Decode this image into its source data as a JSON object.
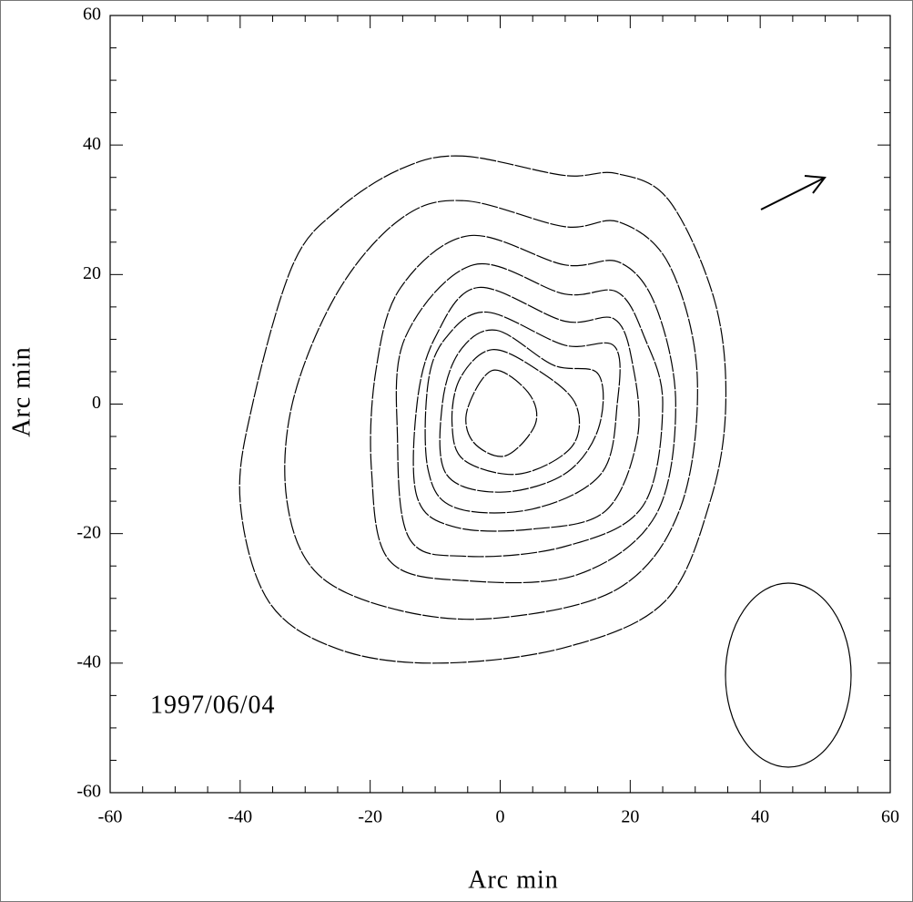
{
  "chart_data": {
    "type": "contour",
    "xlabel": "Arc min",
    "ylabel": "Arc min",
    "annotation": "1997/06/04",
    "xlim": [
      -60,
      60
    ],
    "ylim": [
      -60,
      60
    ],
    "xticks": [
      -60,
      -40,
      -20,
      0,
      20,
      40,
      60
    ],
    "yticks": [
      -60,
      -40,
      -20,
      0,
      20,
      40,
      60
    ],
    "color": "#000000",
    "series": [
      {
        "x": [
          -5.8,
          9.9,
          17.9,
          26,
          33,
          34.7,
          32.3,
          25.3,
          9.9,
          -9.7,
          -25,
          -35.6,
          -40,
          -38,
          -31.9,
          -25,
          -15.3
        ],
        "y": [
          38.3,
          35.3,
          35.6,
          31.4,
          15.9,
          0,
          -15,
          -30.5,
          -37.6,
          -40,
          -37.8,
          -30.5,
          -15,
          0.4,
          21.5,
          30,
          36.3
        ]
      },
      {
        "x": [
          -5.5,
          9.9,
          18.3,
          26,
          30.3,
          27.8,
          18.3,
          0,
          -15.3,
          -28,
          -32.8,
          -31.9,
          -25,
          -15.3
        ],
        "y": [
          31.4,
          27.4,
          28.1,
          21.5,
          4.6,
          -15.8,
          -28.4,
          -33,
          -31.9,
          -26.3,
          -15,
          0.4,
          17.3,
          28.6
        ]
      },
      {
        "x": [
          -4.8,
          9.9,
          18.3,
          23.9,
          27,
          23.9,
          12,
          -4.8,
          -17,
          -19.8,
          -19.1,
          -15.3
        ],
        "y": [
          26,
          21.5,
          21.9,
          15.2,
          0,
          -17.2,
          -26.3,
          -27.3,
          -24.2,
          -10.1,
          5.3,
          18
        ]
      },
      {
        "x": [
          -4.1,
          9.9,
          18,
          22.2,
          25,
          21.9,
          9.9,
          -5.3,
          -14,
          -15.8,
          -14.6
        ],
        "y": [
          21.5,
          17,
          17.3,
          10.3,
          0,
          -15.8,
          -22,
          -23.5,
          -20.7,
          -5.2,
          10.3
        ]
      },
      {
        "x": [
          -3.4,
          9.9,
          17.6,
          20.4,
          21.1,
          16.2,
          5,
          -6.9,
          -12.8,
          -12.8,
          -10
        ],
        "y": [
          18,
          12.8,
          13.1,
          6,
          -5.2,
          -16.5,
          -19.3,
          -19,
          -14.3,
          0,
          10.3
        ]
      },
      {
        "x": [
          -2,
          9.9,
          17.6,
          18,
          15.5,
          5,
          -6.9,
          -11.1,
          -11.1,
          -8.3
        ],
        "y": [
          14.2,
          9.1,
          8.9,
          0,
          -10.8,
          -16.2,
          -16,
          -10.1,
          3.2,
          10.3
        ]
      },
      {
        "x": [
          -0.6,
          8.2,
          15.1,
          15.1,
          9.9,
          0,
          -8.3,
          -8.9,
          -6.2
        ],
        "y": [
          11.4,
          6,
          4.6,
          -3.8,
          -10.8,
          -13.6,
          -10.8,
          0,
          8.2
        ]
      },
      {
        "x": [
          -1.3,
          5.7,
          11.6,
          11,
          2.9,
          -5.5,
          -7.4,
          -6.2
        ],
        "y": [
          8.4,
          5.3,
          0,
          -6.6,
          -10.8,
          -8.7,
          -3.1,
          3.9
        ]
      },
      {
        "x": [
          -1.2,
          4.3,
          5.4,
          0.8,
          -4.1,
          -5.1
        ],
        "y": [
          5.2,
          1.8,
          -3.1,
          -8,
          -5.9,
          -1
        ]
      }
    ]
  }
}
